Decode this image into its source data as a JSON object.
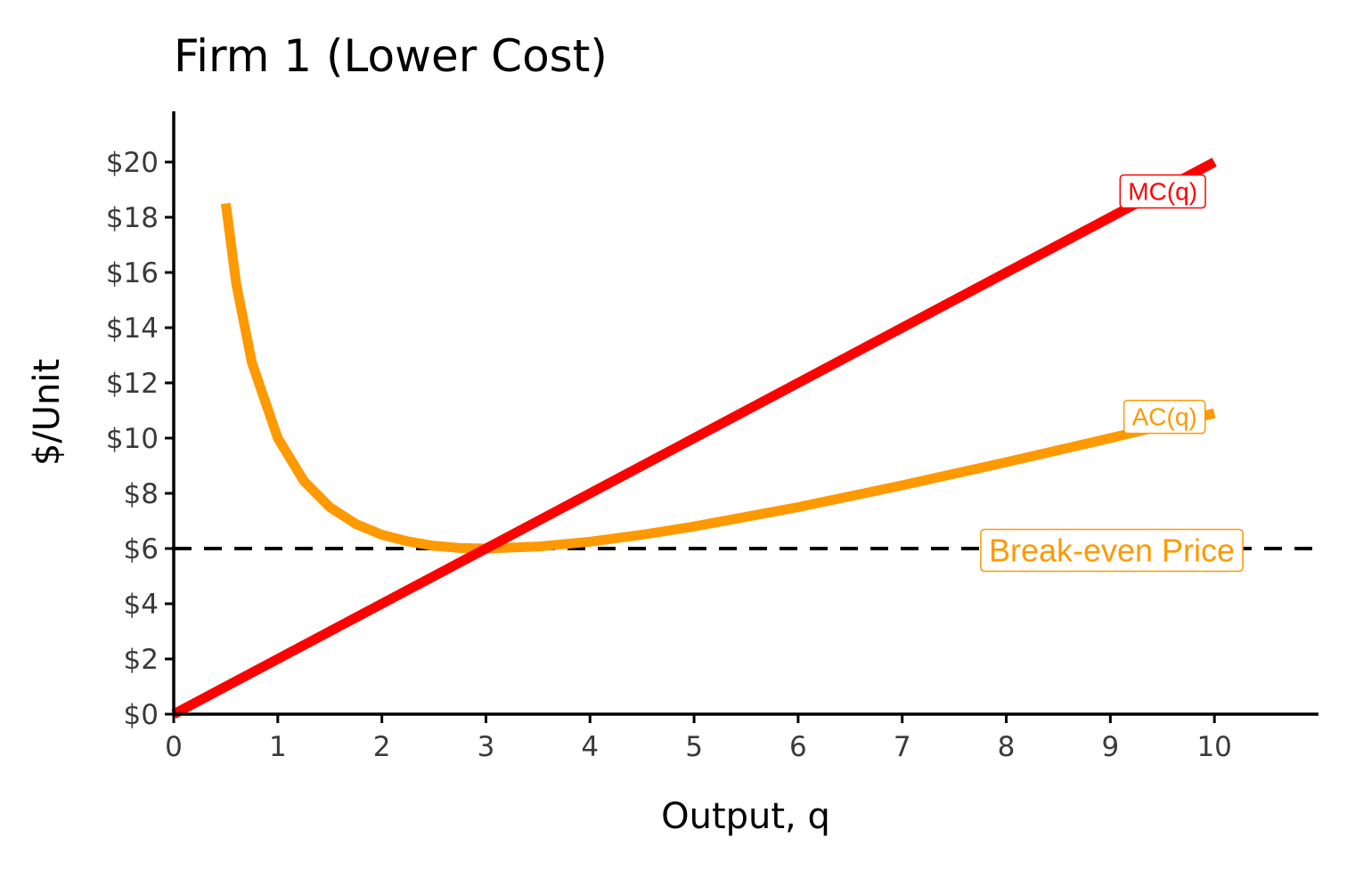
{
  "chart_data": {
    "type": "line",
    "title": "Firm 1 (Lower Cost)",
    "xlabel": "Output, q",
    "ylabel": "$/Unit",
    "xlim": [
      0,
      11
    ],
    "ylim": [
      0,
      22
    ],
    "x_ticks": [
      0,
      1,
      2,
      3,
      4,
      5,
      6,
      7,
      8,
      9,
      10
    ],
    "y_ticks": [
      0,
      2,
      4,
      6,
      8,
      10,
      12,
      14,
      16,
      18,
      20
    ],
    "y_tick_labels": [
      "$0",
      "$2",
      "$4",
      "$6",
      "$8",
      "$10",
      "$12",
      "$14",
      "$16",
      "$18",
      "$20"
    ],
    "grid": false,
    "series": [
      {
        "name": "MC(q)",
        "color": "#ff0000",
        "x": [
          0,
          1,
          2,
          3,
          4,
          5,
          6,
          7,
          8,
          9,
          10
        ],
        "y": [
          0,
          2,
          4,
          6,
          8,
          10,
          12,
          14,
          16,
          18,
          20
        ]
      },
      {
        "name": "AC(q)",
        "color": "#ff9900",
        "x": [
          0.5,
          0.6,
          0.75,
          1,
          1.25,
          1.5,
          1.75,
          2,
          2.25,
          2.5,
          2.75,
          3,
          3.5,
          4,
          4.5,
          5,
          6,
          7,
          8,
          9,
          10
        ],
        "y": [
          18.5,
          15.6,
          12.75,
          10,
          8.45,
          7.5,
          6.89,
          6.5,
          6.26,
          6.1,
          6.02,
          6,
          6.07,
          6.25,
          6.5,
          6.8,
          7.5,
          8.29,
          9.13,
          10,
          10.9
        ]
      }
    ],
    "reference_line": {
      "y": 6,
      "style": "dashed",
      "color": "#000000",
      "label": "Break-even Price",
      "label_color": "#ff9900"
    }
  }
}
